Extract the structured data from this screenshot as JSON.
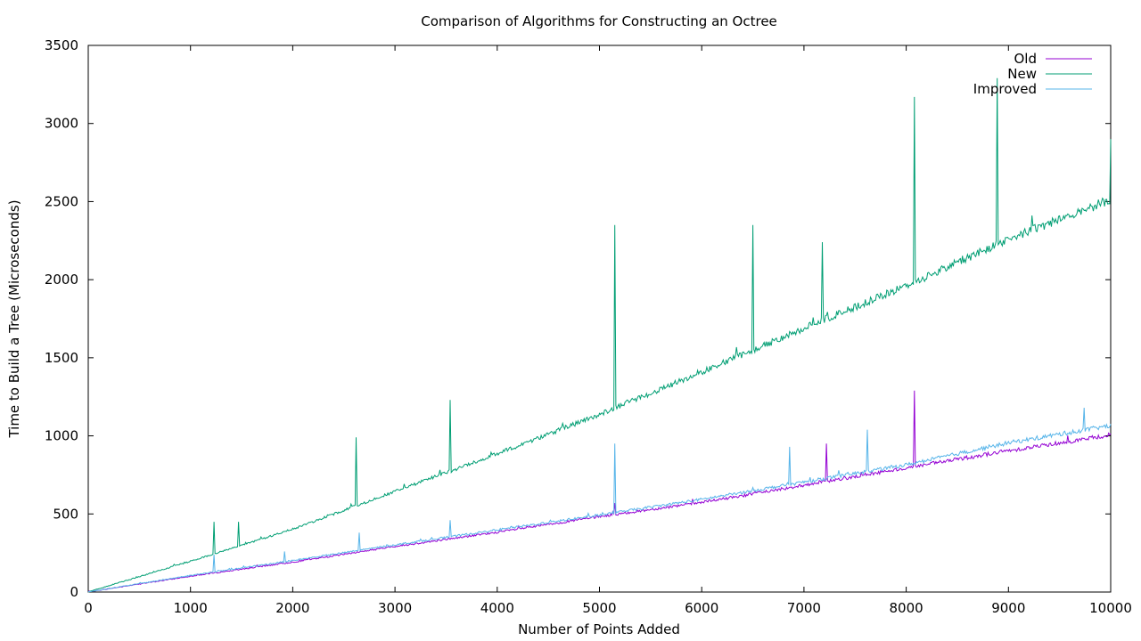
{
  "chart_data": {
    "type": "line",
    "title": "Comparison of Algorithms for Constructing an Octree",
    "xlabel": "Number of Points Added",
    "ylabel": "Time to Build a Tree (Microseconds)",
    "xlim": [
      0,
      10000
    ],
    "ylim": [
      0,
      3500
    ],
    "xticks": [
      0,
      1000,
      2000,
      3000,
      4000,
      5000,
      6000,
      7000,
      8000,
      9000,
      10000
    ],
    "yticks": [
      0,
      500,
      1000,
      1500,
      2000,
      2500,
      3000,
      3500
    ],
    "grid": false,
    "legend_position": "top-right",
    "series": [
      {
        "name": "Old",
        "color": "#9400d3",
        "x": [
          0,
          1000,
          2000,
          3000,
          4000,
          5000,
          6000,
          7000,
          8000,
          9000,
          10000
        ],
        "y": [
          0,
          100,
          190,
          290,
          380,
          480,
          570,
          680,
          790,
          900,
          1000
        ],
        "spikes": [
          {
            "x": 5150,
            "y": 570
          },
          {
            "x": 7220,
            "y": 950
          },
          {
            "x": 8080,
            "y": 1290
          }
        ]
      },
      {
        "name": "New",
        "color": "#009e73",
        "x": [
          0,
          1000,
          2000,
          3000,
          4000,
          5000,
          6000,
          7000,
          8000,
          9000,
          10000
        ],
        "y": [
          0,
          195,
          400,
          640,
          880,
          1130,
          1400,
          1680,
          1950,
          2250,
          2500
        ],
        "spikes": [
          {
            "x": 1230,
            "y": 450
          },
          {
            "x": 1470,
            "y": 450
          },
          {
            "x": 2620,
            "y": 990
          },
          {
            "x": 3540,
            "y": 1230
          },
          {
            "x": 5150,
            "y": 2350
          },
          {
            "x": 6500,
            "y": 2350
          },
          {
            "x": 7180,
            "y": 2240
          },
          {
            "x": 8080,
            "y": 3170
          },
          {
            "x": 8890,
            "y": 3290
          },
          {
            "x": 10000,
            "y": 2900
          }
        ]
      },
      {
        "name": "Improved",
        "color": "#56b4e9",
        "x": [
          0,
          1000,
          2000,
          3000,
          4000,
          5000,
          6000,
          7000,
          8000,
          9000,
          10000
        ],
        "y": [
          0,
          105,
          200,
          300,
          395,
          490,
          590,
          700,
          810,
          950,
          1060
        ],
        "spikes": [
          {
            "x": 1230,
            "y": 240
          },
          {
            "x": 1920,
            "y": 260
          },
          {
            "x": 2650,
            "y": 380
          },
          {
            "x": 3540,
            "y": 460
          },
          {
            "x": 5150,
            "y": 950
          },
          {
            "x": 6860,
            "y": 930
          },
          {
            "x": 7620,
            "y": 1040
          },
          {
            "x": 9740,
            "y": 1180
          }
        ]
      }
    ]
  }
}
